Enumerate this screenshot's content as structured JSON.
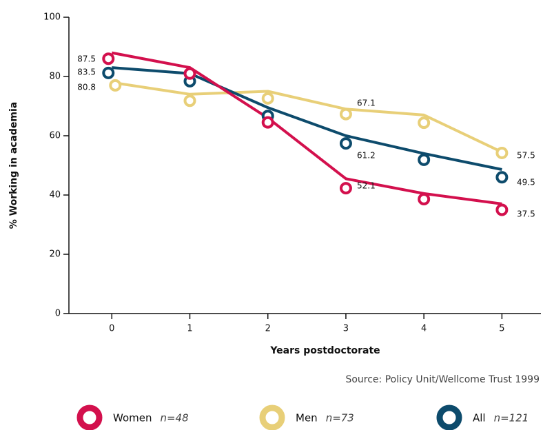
{
  "chart_data": {
    "type": "line",
    "x_label": "Years postdoctorate",
    "y_label": "% Working in academia",
    "source": "Source: Policy Unit/Wellcome Trust 1999",
    "x": [
      0,
      1,
      2,
      3,
      4,
      5
    ],
    "xlim": [
      -0.55,
      5.5
    ],
    "xticks": [
      0,
      1,
      2,
      3,
      4,
      5
    ],
    "ylim": [
      0,
      100
    ],
    "yticks": [
      0,
      20,
      40,
      60,
      80,
      100
    ],
    "series": [
      {
        "name": "Women",
        "n": "n=48",
        "color": "#d3104d",
        "values": [
          88,
          83,
          66,
          45.5,
          40.5,
          37
        ],
        "points": [
          86,
          81,
          64.5,
          42.3,
          38.6,
          35
        ]
      },
      {
        "name": "Men",
        "n": "n=73",
        "color": "#e8cf78",
        "values": [
          78,
          74,
          75,
          69,
          67,
          54.5
        ],
        "points": [
          77,
          71.8,
          72.6,
          67.3,
          64.4,
          54.2
        ]
      },
      {
        "name": "All",
        "n": "n=121",
        "color": "#0d4b6c",
        "values": [
          83,
          81,
          69.5,
          60,
          54,
          48.6
        ],
        "points": [
          81.2,
          78.4,
          66.7,
          57.4,
          51.9,
          46
        ]
      }
    ],
    "annotations": [
      "87.5",
      "83.5",
      "80.8",
      "67.1",
      "61.2",
      "52.1",
      "57.5",
      "49.5",
      "37.5"
    ]
  }
}
